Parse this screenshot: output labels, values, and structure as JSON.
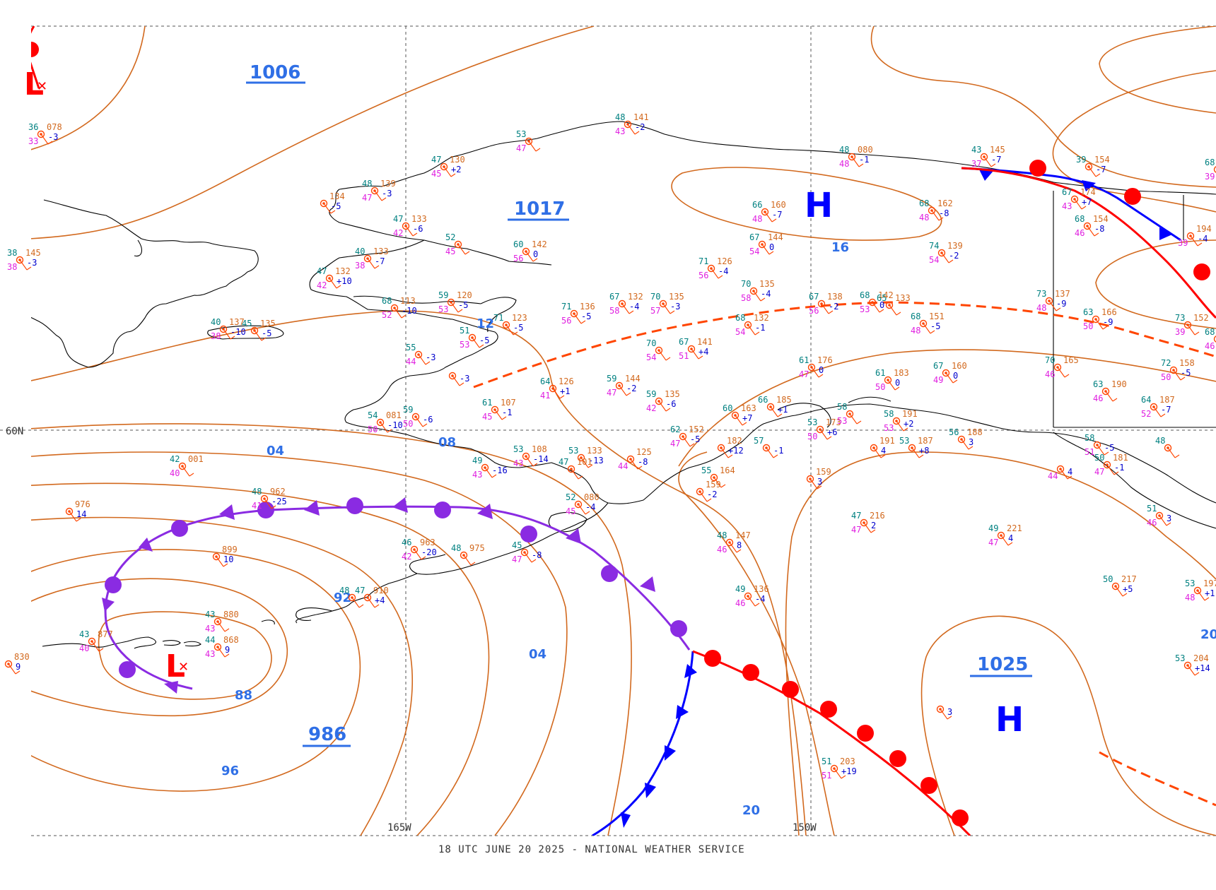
{
  "title": "18 UTC JUNE 20 2025 - NATIONAL WEATHER SERVICE",
  "colors": {
    "isobar": "#d2691e",
    "cold_front": "#0000ff",
    "warm_front": "#ff0000",
    "occluded_front": "#8a2be2",
    "trough": "#ff4500",
    "high": "#0000ff",
    "low": "#ff0000",
    "label_blue": "#2f6fe6",
    "coast": "#000000",
    "temp": "#008080",
    "pressure": "#d2691e",
    "dewpoint": "#e020e0",
    "tendency": "#0000cd"
  },
  "grid_labels": {
    "lat60": "60N",
    "lon165": "165W",
    "lon150": "150W"
  },
  "pressure_centers": [
    {
      "type": "L",
      "label": "",
      "value": ""
    },
    {
      "type": "L",
      "label": "",
      "value": ""
    },
    {
      "type": "H",
      "label": "",
      "value": ""
    },
    {
      "type": "H",
      "label": "",
      "value": ""
    }
  ],
  "center_values": {
    "v1006": "1006",
    "v1017": "1017",
    "v986": "986",
    "v1025": "1025"
  },
  "isobar_labels": [
    "04",
    "08",
    "12",
    "16",
    "88",
    "92",
    "96",
    "04",
    "20",
    "20"
  ],
  "stations": [
    {
      "t": "36",
      "p": "078",
      "d": "33",
      "tend": "-3"
    },
    {
      "t": "38",
      "p": "145",
      "d": "38",
      "tend": "-3"
    },
    {
      "t": "",
      "p": "134",
      "d": "",
      "tend": "-5"
    },
    {
      "t": "48",
      "p": "139",
      "d": "47",
      "tend": "-3"
    },
    {
      "t": "47",
      "p": "130",
      "d": "45",
      "tend": "+2"
    },
    {
      "t": "53",
      "p": "",
      "d": "47",
      "tend": ""
    },
    {
      "t": "48",
      "p": "141",
      "d": "43",
      "tend": "-2"
    },
    {
      "t": "48",
      "p": "080",
      "d": "48",
      "tend": "-1"
    },
    {
      "t": "43",
      "p": "145",
      "d": "37",
      "tend": "-7"
    },
    {
      "t": "39",
      "p": "154",
      "d": "",
      "tend": "-7"
    },
    {
      "t": "47",
      "p": "133",
      "d": "42",
      "tend": "-6"
    },
    {
      "t": "52",
      "p": "",
      "d": "45",
      "tend": ""
    },
    {
      "t": "60",
      "p": "142",
      "d": "56",
      "tend": "0"
    },
    {
      "t": "40",
      "p": "133",
      "d": "38",
      "tend": "-7"
    },
    {
      "t": "47",
      "p": "132",
      "d": "42",
      "tend": "+10"
    },
    {
      "t": "66",
      "p": "160",
      "d": "48",
      "tend": "-7"
    },
    {
      "t": "68",
      "p": "162",
      "d": "48",
      "tend": "-8"
    },
    {
      "t": "67",
      "p": "144",
      "d": "54",
      "tend": "0"
    },
    {
      "t": "74",
      "p": "139",
      "d": "54",
      "tend": "-2"
    },
    {
      "t": "71",
      "p": "126",
      "d": "56",
      "tend": "-4"
    },
    {
      "t": "70",
      "p": "135",
      "d": "58",
      "tend": "-4"
    },
    {
      "t": "68",
      "p": "113",
      "d": "52",
      "tend": "-10"
    },
    {
      "t": "59",
      "p": "120",
      "d": "53",
      "tend": "-5"
    },
    {
      "t": "71",
      "p": "136",
      "d": "56",
      "tend": "-5"
    },
    {
      "t": "67",
      "p": "132",
      "d": "58",
      "tend": "-4"
    },
    {
      "t": "70",
      "p": "135",
      "d": "57",
      "tend": "-3"
    },
    {
      "t": "40",
      "p": "137",
      "d": "38",
      "tend": "-10"
    },
    {
      "t": "45",
      "p": "135",
      "d": "",
      "tend": "-5"
    },
    {
      "t": "51",
      "p": "",
      "d": "53",
      "tend": "-5"
    },
    {
      "t": "71",
      "p": "123",
      "d": "",
      "tend": "-5"
    },
    {
      "t": "67",
      "p": "138",
      "d": "56",
      "tend": "-2"
    },
    {
      "t": "68",
      "p": "142",
      "d": "53",
      "tend": "0"
    },
    {
      "t": "65",
      "p": "133",
      "d": "",
      "tend": ""
    },
    {
      "t": "73",
      "p": "137",
      "d": "48",
      "tend": "-9"
    },
    {
      "t": "63",
      "p": "166",
      "d": "50",
      "tend": "-9"
    },
    {
      "t": "73",
      "p": "152",
      "d": "39",
      "tend": ""
    },
    {
      "t": "68",
      "p": "151",
      "d": "48",
      "tend": "-5"
    },
    {
      "t": "68",
      "p": "132",
      "d": "54",
      "tend": "-1"
    },
    {
      "t": "55",
      "p": "",
      "d": "44",
      "tend": "-3"
    },
    {
      "t": "",
      "p": "",
      "d": "",
      "tend": "-3"
    },
    {
      "t": "70",
      "p": "",
      "d": "54",
      "tend": ""
    },
    {
      "t": "67",
      "p": "141",
      "d": "51",
      "tend": "+4"
    },
    {
      "t": "64",
      "p": "126",
      "d": "41",
      "tend": "+1"
    },
    {
      "t": "59",
      "p": "144",
      "d": "47",
      "tend": "-2"
    },
    {
      "t": "59",
      "p": "135",
      "d": "42",
      "tend": "-6"
    },
    {
      "t": "61",
      "p": "107",
      "d": "45",
      "tend": "-1"
    },
    {
      "t": "54",
      "p": "081",
      "d": "50",
      "tend": "-10"
    },
    {
      "t": "59",
      "p": "",
      "d": "50",
      "tend": "-6"
    },
    {
      "t": "61",
      "p": "176",
      "d": "47",
      "tend": "0"
    },
    {
      "t": "61",
      "p": "183",
      "d": "50",
      "tend": "0"
    },
    {
      "t": "67",
      "p": "160",
      "d": "49",
      "tend": "0"
    },
    {
      "t": "70",
      "p": "165",
      "d": "46",
      "tend": ""
    },
    {
      "t": "72",
      "p": "158",
      "d": "50",
      "tend": "-5"
    },
    {
      "t": "63",
      "p": "190",
      "d": "46",
      "tend": ""
    },
    {
      "t": "64",
      "p": "187",
      "d": "52",
      "tend": "-7"
    },
    {
      "t": "66",
      "p": "185",
      "d": "",
      "tend": "+1"
    },
    {
      "t": "60",
      "p": "163",
      "d": "",
      "tend": "+7"
    },
    {
      "t": "53",
      "p": "173",
      "d": "50",
      "tend": "+6"
    },
    {
      "t": "58",
      "p": "",
      "d": "53",
      "tend": ""
    },
    {
      "t": "58",
      "p": "191",
      "d": "53",
      "tend": "+2"
    },
    {
      "t": "56",
      "p": "188",
      "d": "",
      "tend": "3"
    },
    {
      "t": "62",
      "p": "152",
      "d": "47",
      "tend": "-5"
    },
    {
      "t": "",
      "p": "182",
      "d": "",
      "tend": "+12"
    },
    {
      "t": "57",
      "p": "",
      "d": "",
      "tend": "-1"
    },
    {
      "t": "",
      "p": "191",
      "d": "",
      "tend": "4"
    },
    {
      "t": "53",
      "p": "187",
      "d": "",
      "tend": "+8"
    },
    {
      "t": "53",
      "p": "108",
      "d": "43",
      "tend": "-14"
    },
    {
      "t": "53",
      "p": "133",
      "d": "",
      "tend": "-13"
    },
    {
      "t": "",
      "p": "125",
      "d": "44",
      "tend": "-8"
    },
    {
      "t": "49",
      "p": "",
      "d": "43",
      "tend": "-16"
    },
    {
      "t": "47",
      "p": "101",
      "d": "",
      "tend": ""
    },
    {
      "t": "55",
      "p": "164",
      "d": "",
      "tend": ""
    },
    {
      "t": "",
      "p": "159",
      "d": "",
      "tend": "-2"
    },
    {
      "t": "52",
      "p": "080",
      "d": "45",
      "tend": "-4"
    },
    {
      "t": "",
      "p": "159",
      "d": "",
      "tend": "3"
    },
    {
      "t": "47",
      "p": "216",
      "d": "47",
      "tend": "2"
    },
    {
      "t": "49",
      "p": "221",
      "d": "47",
      "tend": "4"
    },
    {
      "t": "48",
      "p": "147",
      "d": "46",
      "tend": "8"
    },
    {
      "t": "49",
      "p": "136",
      "d": "46",
      "tend": "-4"
    },
    {
      "t": "42",
      "p": "001",
      "d": "40",
      "tend": ""
    },
    {
      "t": "",
      "p": "976",
      "d": "",
      "tend": "14"
    },
    {
      "t": "48",
      "p": "962",
      "d": "41",
      "tend": "-25"
    },
    {
      "t": "",
      "p": "899",
      "d": "",
      "tend": "10"
    },
    {
      "t": "46",
      "p": "963",
      "d": "42",
      "tend": "-20"
    },
    {
      "t": "48",
      "p": "975",
      "d": "",
      "tend": ""
    },
    {
      "t": "45",
      "p": "",
      "d": "47",
      "tend": "-8"
    },
    {
      "t": "48",
      "p": "",
      "d": "",
      "tend": ""
    },
    {
      "t": "47",
      "p": "910",
      "d": "",
      "tend": "+4"
    },
    {
      "t": "43",
      "p": "880",
      "d": "43",
      "tend": ""
    },
    {
      "t": "44",
      "p": "868",
      "d": "43",
      "tend": "9"
    },
    {
      "t": "43",
      "p": "877",
      "d": "40",
      "tend": ""
    },
    {
      "t": "",
      "p": "830",
      "d": "",
      "tend": "9"
    },
    {
      "t": "50",
      "p": "217",
      "d": "",
      "tend": "+5"
    },
    {
      "t": "53",
      "p": "197",
      "d": "48",
      "tend": "+1"
    },
    {
      "t": "53",
      "p": "204",
      "d": "",
      "tend": "+14"
    },
    {
      "t": "51",
      "p": "203",
      "d": "51",
      "tend": "+19"
    },
    {
      "t": "",
      "p": "",
      "d": "",
      "tend": "3"
    },
    {
      "t": "58",
      "p": "",
      "d": "51",
      "tend": "-5"
    },
    {
      "t": "50",
      "p": "181",
      "d": "47",
      "tend": "-1"
    },
    {
      "t": "",
      "p": "",
      "d": "44",
      "tend": "4"
    },
    {
      "t": "48",
      "p": "",
      "d": "",
      "tend": ""
    },
    {
      "t": "51",
      "p": "",
      "d": "46",
      "tend": "3"
    },
    {
      "t": "67",
      "p": "174",
      "d": "43",
      "tend": "+7"
    },
    {
      "t": "68",
      "p": "154",
      "d": "46",
      "tend": "-8"
    },
    {
      "t": "",
      "p": "194",
      "d": "39",
      "tend": "-4"
    },
    {
      "t": "68",
      "p": "",
      "d": "39",
      "tend": ""
    },
    {
      "t": "68",
      "p": "",
      "d": "46",
      "tend": ""
    }
  ]
}
